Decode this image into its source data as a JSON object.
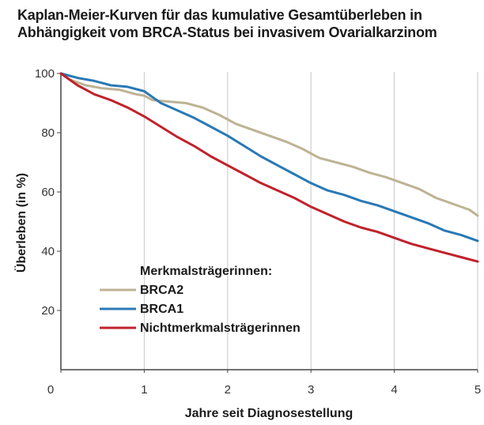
{
  "chart_data": {
    "type": "line",
    "title_line1": "Kaplan-Meier-Kurven für das kumulative Gesamtüberleben in",
    "title_line2": "Abhängigkeit vom BRCA-Status bei invasivem Ovarialkarzinom",
    "xlabel": "Jahre seit Diagnosestellung",
    "ylabel": "Überleben (in %)",
    "xlim": [
      0,
      5
    ],
    "ylim": [
      0,
      100
    ],
    "x_ticks": [
      "0",
      "1",
      "2",
      "3",
      "4",
      "5"
    ],
    "y_ticks": [
      "20",
      "40",
      "60",
      "80",
      "100"
    ],
    "grid": "vertical",
    "legend_title": "Merkmalsträgerinnen:",
    "series": [
      {
        "name": "BRCA2",
        "color": "#bdb394",
        "x": [
          0,
          0.1,
          0.3,
          0.5,
          0.7,
          0.9,
          1.0,
          1.1,
          1.3,
          1.5,
          1.7,
          1.9,
          2.1,
          2.3,
          2.5,
          2.7,
          2.9,
          3.1,
          3.3,
          3.5,
          3.7,
          3.9,
          4.1,
          4.3,
          4.5,
          4.7,
          4.9,
          5.0
        ],
        "y": [
          100,
          98,
          96,
          95,
          94.5,
          93,
          92.5,
          91,
          90.5,
          90,
          88.5,
          86,
          83,
          81,
          79,
          77,
          74.5,
          71.5,
          70,
          68.5,
          66.5,
          65,
          63,
          61,
          58,
          56,
          54,
          52
        ]
      },
      {
        "name": "BRCA1",
        "color": "#2979b5",
        "x": [
          0,
          0.2,
          0.4,
          0.6,
          0.8,
          1.0,
          1.2,
          1.4,
          1.6,
          1.8,
          2.0,
          2.2,
          2.4,
          2.6,
          2.8,
          3.0,
          3.2,
          3.4,
          3.6,
          3.8,
          4.0,
          4.2,
          4.4,
          4.6,
          4.8,
          5.0
        ],
        "y": [
          100,
          98.5,
          97.5,
          96,
          95.5,
          94,
          90,
          87.5,
          85,
          82,
          79,
          75.5,
          72,
          69,
          66,
          63,
          60.5,
          59,
          57,
          55.5,
          53.5,
          51.5,
          49.5,
          47,
          45.5,
          43.5
        ]
      },
      {
        "name": "Nichtmerkmalsträgerinnen",
        "color": "#c0222b",
        "x": [
          0,
          0.2,
          0.4,
          0.6,
          0.8,
          1.0,
          1.2,
          1.4,
          1.6,
          1.8,
          2.0,
          2.2,
          2.4,
          2.6,
          2.8,
          3.0,
          3.2,
          3.4,
          3.6,
          3.8,
          4.0,
          4.2,
          4.4,
          4.6,
          4.8,
          5.0
        ],
        "y": [
          100,
          96,
          93,
          91,
          88.5,
          85.5,
          82,
          78.5,
          75.5,
          72,
          69,
          66,
          63,
          60.5,
          58,
          55,
          52.5,
          50,
          48,
          46.5,
          44.5,
          42.5,
          41,
          39.5,
          38,
          36.5
        ]
      }
    ]
  }
}
